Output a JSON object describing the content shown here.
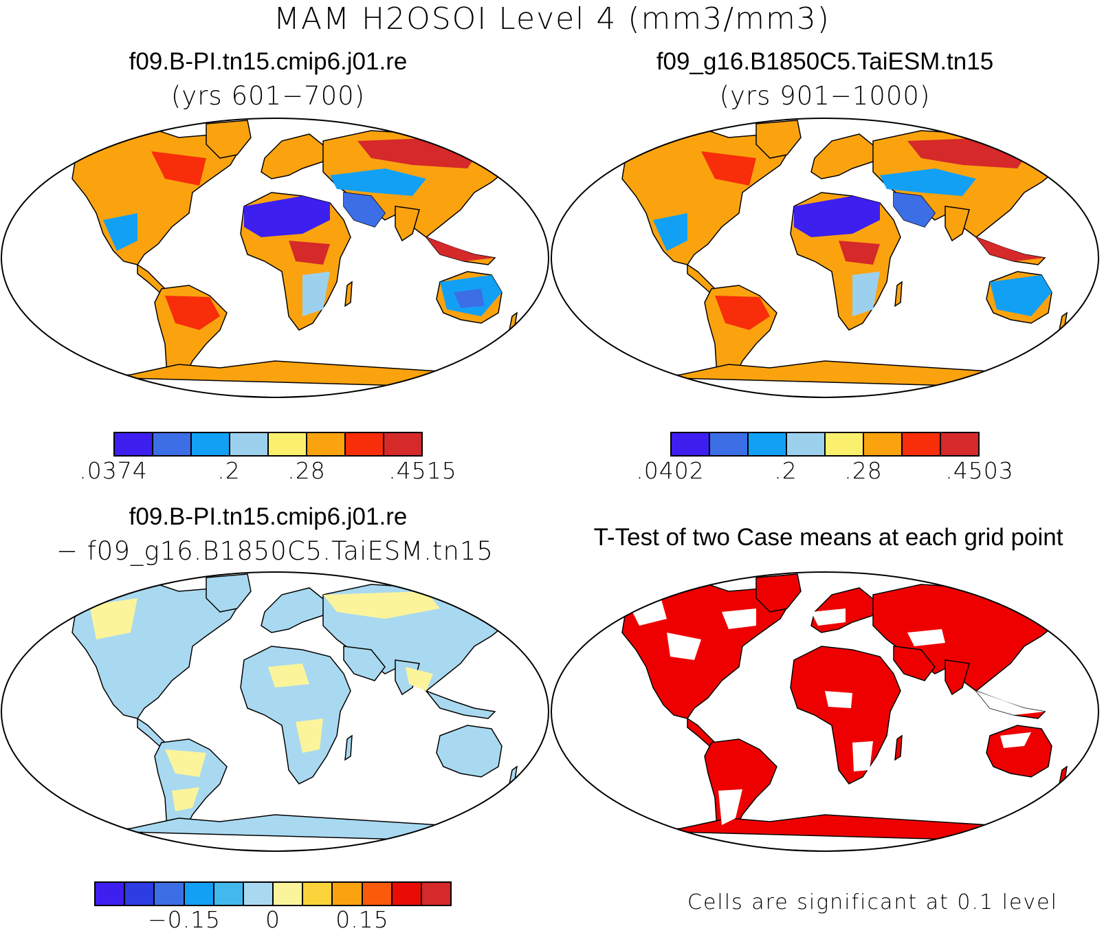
{
  "title": "MAM H2OSOI Level 4 (mm3/mm3)",
  "panels": [
    {
      "title": "f09.B-PI.tn15.cmip6.j01.re",
      "subtitle": "(yrs 601−700)"
    },
    {
      "title": "f09_g16.B1850C5.TaiESM.tn15",
      "subtitle": "(yrs 901−1000)"
    },
    {
      "title": "f09.B-PI.tn15.cmip6.j01.re",
      "subtitle": "− f09_g16.B1850C5.TaiESM.tn15"
    },
    {
      "title": "T-Test of two Case means at each grid point",
      "subtitle": ""
    }
  ],
  "colorbars": [
    {
      "colors": [
        "#3d1ff0",
        "#3c6ee6",
        "#12a0f5",
        "#9cd1ee",
        "#fbef6e",
        "#fba30f",
        "#f82d0a",
        "#d5292a"
      ],
      "labels": [
        ".0374",
        ".2",
        ".28",
        ".4515"
      ]
    },
    {
      "colors": [
        "#3d1ff0",
        "#3c6ee6",
        "#12a0f5",
        "#9cd1ee",
        "#fbef6e",
        "#fba30f",
        "#f82d0a",
        "#d5292a"
      ],
      "labels": [
        ".0402",
        ".2",
        ".28",
        ".4503"
      ]
    },
    {
      "colors": [
        "#3d1ff0",
        "#2d3de3",
        "#3c6ee6",
        "#12a0f5",
        "#42b8ec",
        "#a9d9f0",
        "#fbf49b",
        "#fbd43b",
        "#fba30f",
        "#fb5a0b",
        "#e80c05",
        "#d5292a"
      ],
      "labels": [
        "−0.15",
        "0",
        "0.15"
      ]
    }
  ],
  "significance_note": "Cells are significant at 0.1 level",
  "significance_color": "#ef0000"
}
